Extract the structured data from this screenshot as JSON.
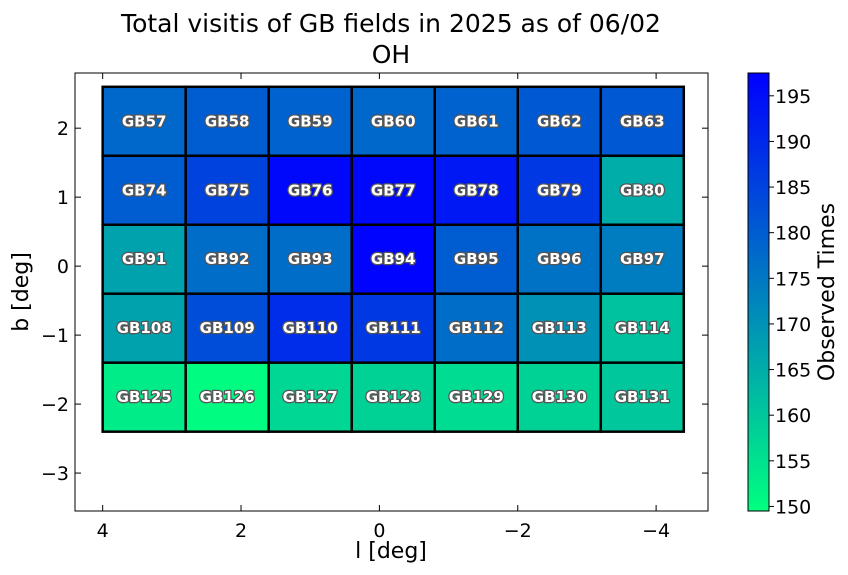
{
  "chart_data": {
    "type": "heatmap",
    "title": "Total visitis of GB fields in 2025 as of 06/02",
    "subtitle": "OH",
    "xlabel": "l [deg]",
    "ylabel": "b [deg]",
    "xlim": [
      4.4,
      -4.75
    ],
    "ylim": [
      -3.55,
      2.8
    ],
    "x_inverted": true,
    "xticks": [
      4,
      2,
      0,
      -2,
      -4
    ],
    "xtick_labels": [
      "4",
      "2",
      "0",
      "−2",
      "−4"
    ],
    "yticks": [
      2,
      1,
      0,
      -1,
      -2,
      -3
    ],
    "ytick_labels": [
      "2",
      "1",
      "0",
      "−1",
      "−2",
      "−3"
    ],
    "cell_l_edges": [
      4.0,
      2.8,
      1.6,
      0.4,
      -0.8,
      -2.0,
      -3.2,
      -4.4
    ],
    "cell_b_edges": [
      2.6,
      1.6,
      0.6,
      -0.4,
      -1.4,
      -2.4,
      -3.4
    ],
    "rows": [
      [
        "GB57",
        "GB58",
        "GB59",
        "GB60",
        "GB61",
        "GB62",
        "GB63"
      ],
      [
        "GB74",
        "GB75",
        "GB76",
        "GB77",
        "GB78",
        "GB79",
        "GB80"
      ],
      [
        "GB91",
        "GB92",
        "GB93",
        "GB94",
        "GB95",
        "GB96",
        "GB97"
      ],
      [
        "GB108",
        "GB109",
        "GB110",
        "GB111",
        "GB112",
        "GB113",
        "GB114"
      ],
      [
        "GB125",
        "GB126",
        "GB127",
        "GB128",
        "GB129",
        "GB130",
        "GB131"
      ]
    ],
    "values": [
      [
        178,
        180,
        179,
        178,
        179,
        181,
        181
      ],
      [
        180,
        185,
        196,
        196,
        193,
        187,
        165
      ],
      [
        167,
        177,
        177,
        197,
        180,
        176,
        174
      ],
      [
        167,
        183,
        189,
        187,
        177,
        170,
        161
      ],
      [
        153,
        150,
        157,
        158,
        156,
        158,
        160
      ]
    ],
    "colorbar": {
      "label": "Observed Times",
      "range": [
        149.5,
        197.5
      ],
      "ticks": [
        150,
        155,
        160,
        165,
        170,
        175,
        180,
        185,
        190,
        195
      ],
      "colormap": "winter",
      "color_low": "#00ff80",
      "color_high": "#0000ff"
    }
  }
}
